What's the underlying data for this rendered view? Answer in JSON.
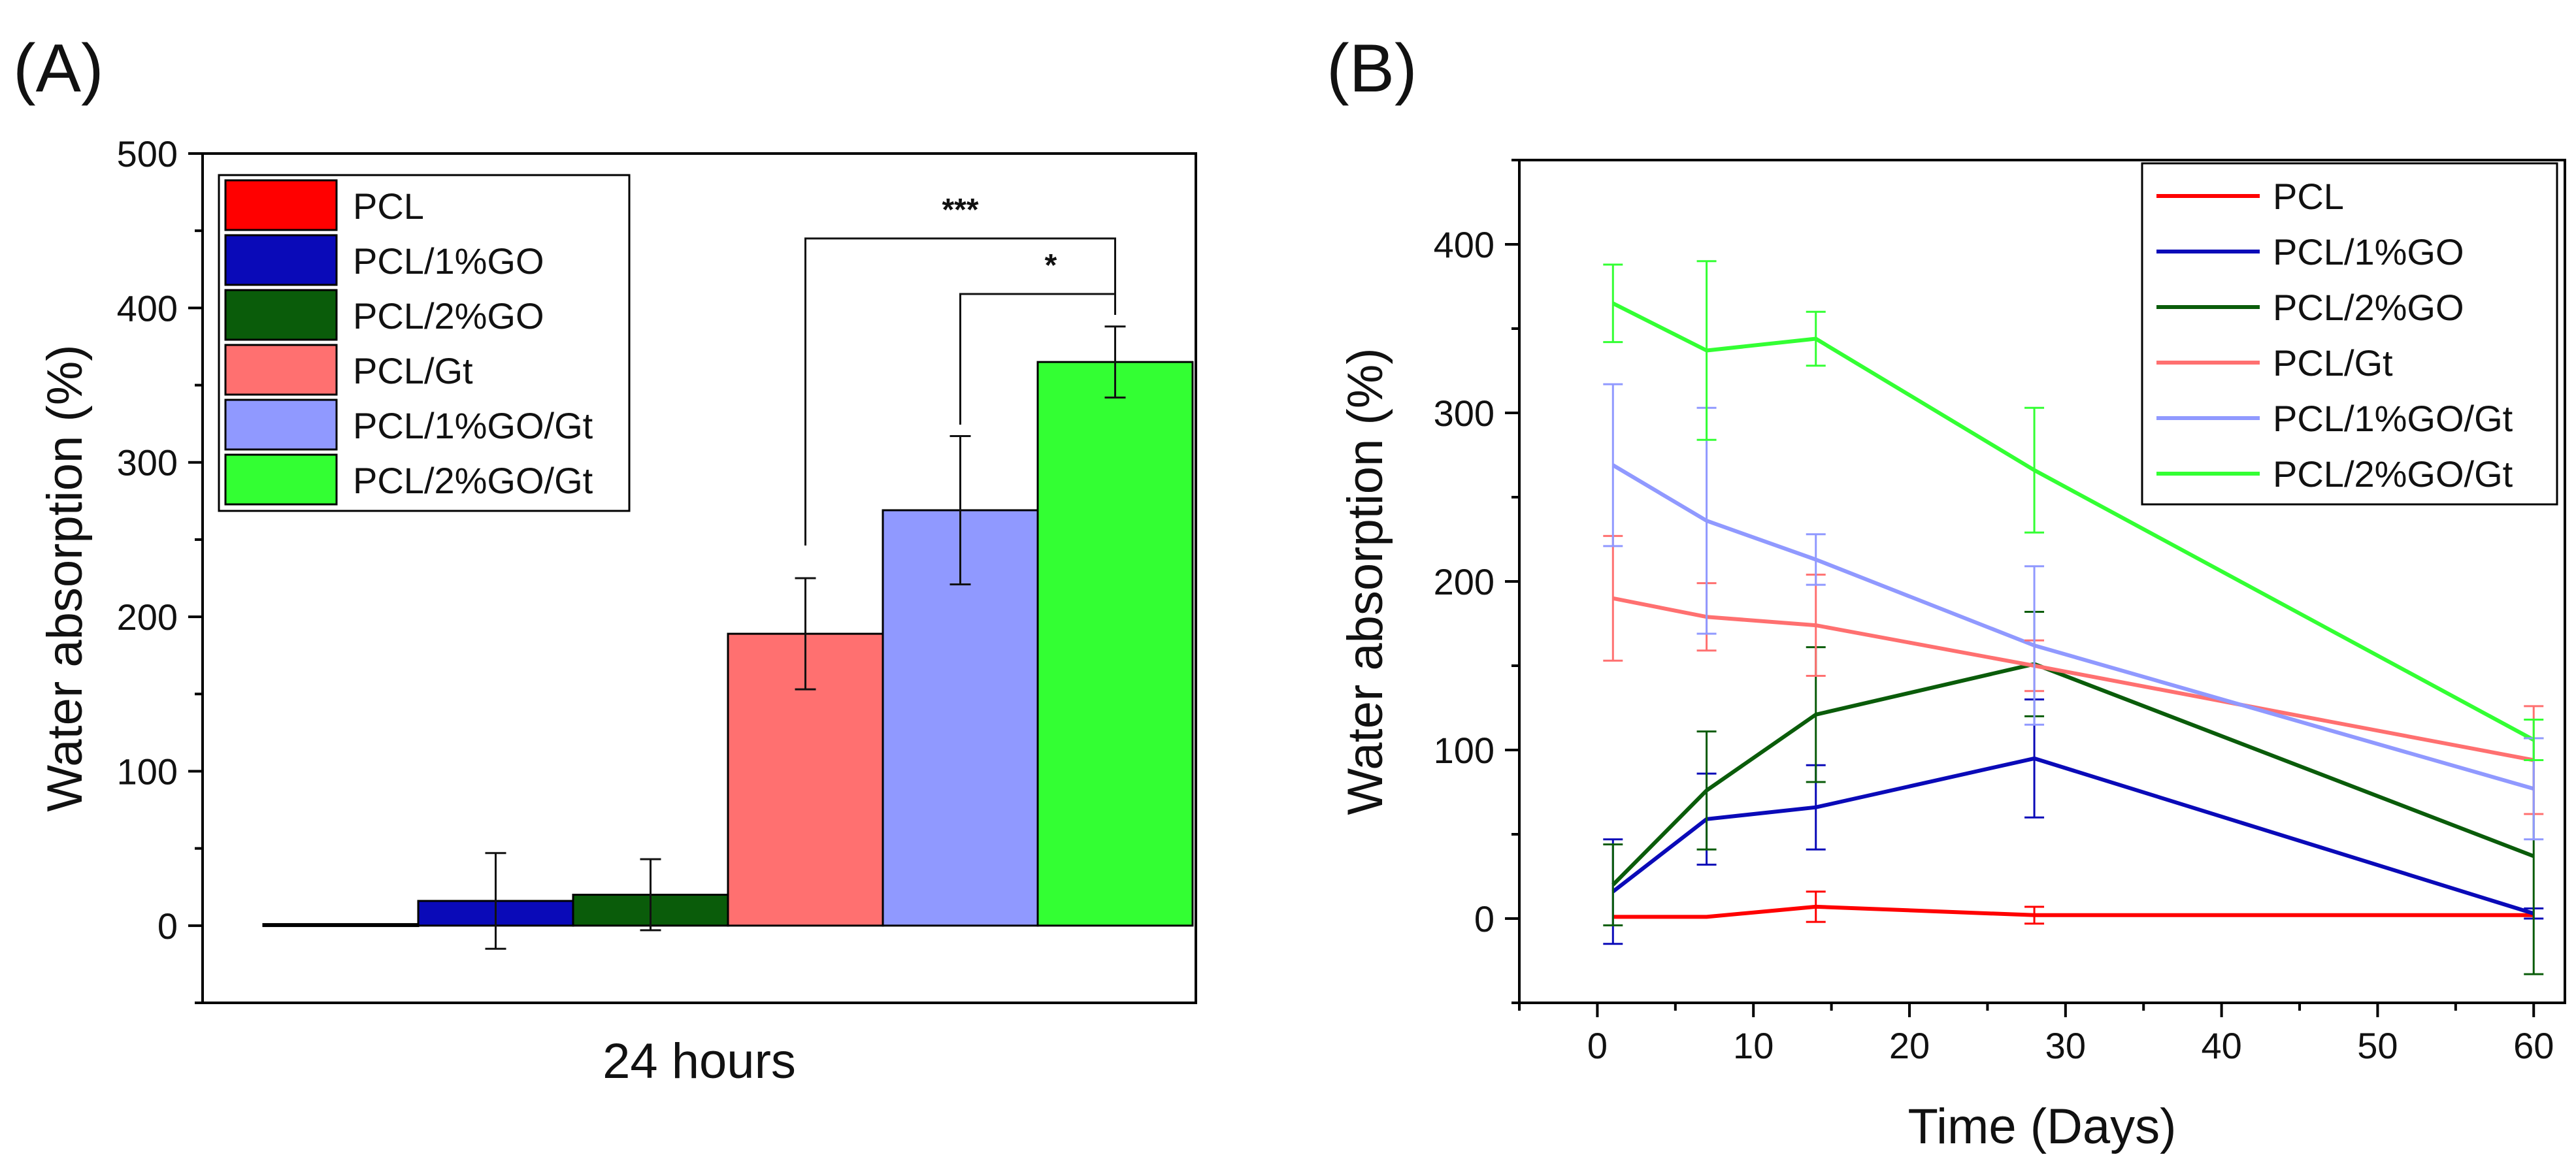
{
  "chart_data": [
    {
      "panel": "(A)",
      "type": "bar",
      "title": "",
      "xlabel": "24 hours",
      "ylabel": "Water absorption (%)",
      "ylim": [
        -50,
        500
      ],
      "yticks": [
        0,
        100,
        200,
        300,
        400,
        500
      ],
      "grid": false,
      "legend": "top-left",
      "series": [
        {
          "name": "PCL",
          "value": 1,
          "error": 1,
          "color": "#ff0000"
        },
        {
          "name": "PCL/1%GO",
          "value": 16,
          "error": 31,
          "color": "#0a0ab8"
        },
        {
          "name": "PCL/2%GO",
          "value": 20,
          "error": 23,
          "color": "#0a5c0a"
        },
        {
          "name": "PCL/Gt",
          "value": 189,
          "error": 36,
          "color": "#ff7070"
        },
        {
          "name": "PCL/1%GO/Gt",
          "value": 269,
          "error": 48,
          "color": "#9099ff"
        },
        {
          "name": "PCL/2%GO/Gt",
          "value": 365,
          "error": 23,
          "color": "#33ff33"
        }
      ],
      "significance": [
        {
          "from": "PCL/Gt",
          "to": "PCL/2%GO/Gt",
          "label": "***"
        },
        {
          "from": "PCL/1%GO/Gt",
          "to": "PCL/2%GO/Gt",
          "label": "*"
        }
      ]
    },
    {
      "panel": "(B)",
      "type": "line",
      "title": "",
      "xlabel": "Time (Days)",
      "ylabel": "Water absorption (%)",
      "xlim": [
        -5,
        62
      ],
      "ylim": [
        -50,
        450
      ],
      "xticks": [
        0,
        10,
        20,
        30,
        40,
        50,
        60
      ],
      "yticks": [
        0,
        100,
        200,
        300,
        400
      ],
      "grid": false,
      "legend": "top-right",
      "x": [
        1,
        7,
        14,
        28,
        60
      ],
      "series": [
        {
          "name": "PCL",
          "color": "#ff0000",
          "values": [
            1,
            1,
            7,
            2,
            2
          ],
          "errors": [
            2,
            2,
            9,
            5,
            2
          ]
        },
        {
          "name": "PCL/1%GO",
          "color": "#0a0ab8",
          "values": [
            16,
            59,
            66,
            95,
            3
          ],
          "errors": [
            31,
            27,
            25,
            35,
            3
          ]
        },
        {
          "name": "PCL/2%GO",
          "color": "#0a5c0a",
          "values": [
            20,
            76,
            121,
            151,
            37
          ],
          "errors": [
            24,
            35,
            40,
            31,
            70
          ]
        },
        {
          "name": "PCL/Gt",
          "color": "#ff7070",
          "values": [
            190,
            179,
            174,
            150,
            94
          ],
          "errors": [
            37,
            20,
            30,
            15,
            32
          ]
        },
        {
          "name": "PCL/1%GO/Gt",
          "color": "#9099ff",
          "values": [
            269,
            236,
            213,
            162,
            77
          ],
          "errors": [
            48,
            67,
            15,
            47,
            30
          ]
        },
        {
          "name": "PCL/2%GO/Gt",
          "color": "#33ff33",
          "values": [
            365,
            337,
            344,
            266,
            106
          ],
          "errors": [
            23,
            53,
            16,
            37,
            12
          ]
        }
      ]
    }
  ]
}
